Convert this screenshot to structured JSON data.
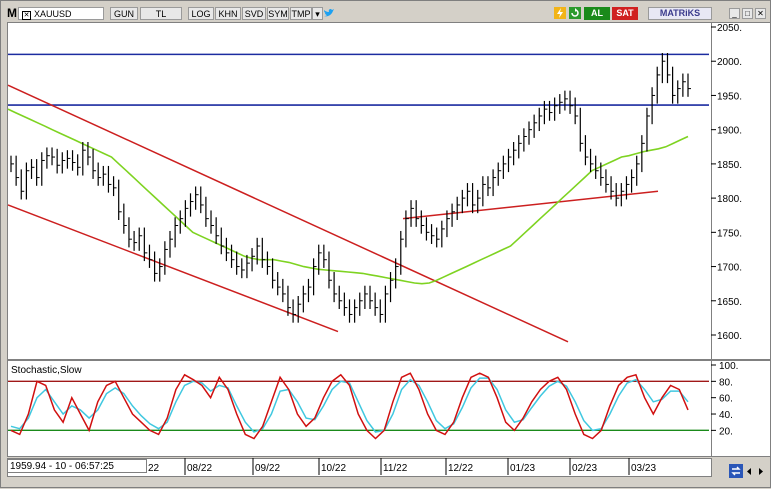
{
  "toolbar": {
    "m_label": "M",
    "symbol": "XAUUSD",
    "buttons": [
      "GUN",
      "TL",
      "LOG",
      "KHN",
      "SVD",
      "SYM",
      "TMP"
    ],
    "al_label": "AL",
    "sat_label": "SAT",
    "logo": "MATRiKS"
  },
  "colors": {
    "up_color": "#1a8a1a",
    "down_color": "#d02020",
    "channel": "#cc1f1f",
    "hline": "#1c2ca0",
    "ma": "#7ed321",
    "stoch_k": "#d01010",
    "stoch_d": "#40c8e0"
  },
  "readout": "1959.94 - 10 - 06:57:25",
  "indicator": {
    "name": "Stochastic,Slow"
  },
  "chart_data": [
    {
      "type": "candlestick",
      "symbol": "XAUUSD",
      "y_ticks": [
        "2050.",
        "2000.",
        "1950.",
        "1900.",
        "1850.",
        "1800.",
        "1750.",
        "1700.",
        "1650.",
        "1600."
      ],
      "x_ticks": [
        "22",
        "08/22",
        "09/22",
        "10/22",
        "11/22",
        "12/22",
        "01/23",
        "02/23",
        "03/23"
      ],
      "ylim": [
        1560,
        2060
      ],
      "horizontal_lines": [
        2010,
        1936
      ],
      "hl_close": [
        1850,
        1830,
        1810,
        1840,
        1845,
        1830,
        1855,
        1862,
        1860,
        1848,
        1855,
        1858,
        1852,
        1845,
        1870,
        1860,
        1840,
        1830,
        1835,
        1820,
        1815,
        1780,
        1760,
        1740,
        1735,
        1745,
        1720,
        1710,
        1690,
        1700,
        1725,
        1740,
        1760,
        1770,
        1785,
        1795,
        1805,
        1790,
        1770,
        1760,
        1745,
        1730,
        1720,
        1710,
        1700,
        1695,
        1705,
        1715,
        1730,
        1710,
        1700,
        1680,
        1670,
        1660,
        1640,
        1630,
        1645,
        1660,
        1670,
        1700,
        1720,
        1710,
        1680,
        1660,
        1650,
        1640,
        1630,
        1640,
        1650,
        1660,
        1650,
        1640,
        1630,
        1660,
        1680,
        1700,
        1740,
        1770,
        1785,
        1770,
        1760,
        1750,
        1745,
        1740,
        1755,
        1770,
        1780,
        1790,
        1800,
        1810,
        1790,
        1800,
        1820,
        1815,
        1830,
        1840,
        1850,
        1860,
        1870,
        1880,
        1890,
        1900,
        1910,
        1920,
        1930,
        1925,
        1935,
        1940,
        1945,
        1935,
        1920,
        1880,
        1860,
        1850,
        1840,
        1830,
        1820,
        1810,
        1800,
        1810,
        1820,
        1830,
        1850,
        1880,
        1920,
        1950,
        1980,
        2000,
        1980,
        1950,
        1960,
        1970,
        1960
      ],
      "ma": [
        1930,
        1925,
        1920,
        1915,
        1910,
        1905,
        1900,
        1895,
        1890,
        1885,
        1880,
        1875,
        1870,
        1865,
        1860,
        1850,
        1840,
        1830,
        1820,
        1810,
        1800,
        1790,
        1780,
        1770,
        1760,
        1750,
        1745,
        1740,
        1735,
        1730,
        1725,
        1720,
        1715,
        1712,
        1710,
        1710,
        1710,
        1708,
        1706,
        1703,
        1700,
        1698,
        1696,
        1695,
        1694,
        1693,
        1692,
        1691,
        1690,
        1688,
        1686,
        1684,
        1682,
        1680,
        1678,
        1676,
        1675,
        1676,
        1680,
        1685,
        1690,
        1695,
        1700,
        1705,
        1710,
        1715,
        1720,
        1725,
        1730,
        1740,
        1750,
        1760,
        1770,
        1780,
        1790,
        1800,
        1810,
        1820,
        1830,
        1840,
        1845,
        1850,
        1855,
        1860,
        1862,
        1865,
        1868,
        1870,
        1872,
        1875,
        1880,
        1885,
        1890
      ],
      "channel_upper": [
        [
          0,
          1965
        ],
        [
          560,
          1590
        ]
      ],
      "channel_lower": [
        [
          0,
          1790
        ],
        [
          330,
          1605
        ]
      ],
      "support": [
        [
          395,
          1770
        ],
        [
          650,
          1810
        ]
      ]
    },
    {
      "type": "line",
      "name": "Stochastic,Slow",
      "y_ticks": [
        "100.",
        "80.",
        "60.",
        "40.",
        "20."
      ],
      "levels": [
        80,
        20
      ],
      "k": [
        20,
        15,
        40,
        80,
        75,
        45,
        30,
        60,
        40,
        20,
        55,
        75,
        80,
        60,
        40,
        30,
        20,
        15,
        35,
        70,
        88,
        82,
        75,
        60,
        85,
        70,
        40,
        15,
        10,
        25,
        55,
        85,
        70,
        40,
        25,
        35,
        60,
        80,
        88,
        75,
        40,
        20,
        10,
        20,
        55,
        85,
        90,
        70,
        40,
        20,
        15,
        30,
        60,
        85,
        90,
        85,
        60,
        30,
        20,
        35,
        55,
        70,
        80,
        85,
        70,
        40,
        15,
        10,
        20,
        50,
        75,
        85,
        88,
        60,
        40,
        60,
        75,
        70,
        45
      ],
      "d": [
        25,
        22,
        35,
        60,
        70,
        55,
        40,
        50,
        45,
        35,
        45,
        65,
        72,
        65,
        50,
        38,
        28,
        22,
        30,
        55,
        75,
        80,
        78,
        68,
        75,
        72,
        50,
        30,
        18,
        22,
        40,
        68,
        70,
        55,
        35,
        33,
        50,
        70,
        80,
        78,
        55,
        32,
        18,
        20,
        40,
        70,
        82,
        75,
        55,
        32,
        22,
        28,
        48,
        72,
        84,
        84,
        70,
        45,
        30,
        33,
        48,
        62,
        74,
        80,
        74,
        55,
        32,
        20,
        22,
        40,
        62,
        78,
        82,
        70,
        55,
        58,
        68,
        68,
        55
      ]
    }
  ]
}
